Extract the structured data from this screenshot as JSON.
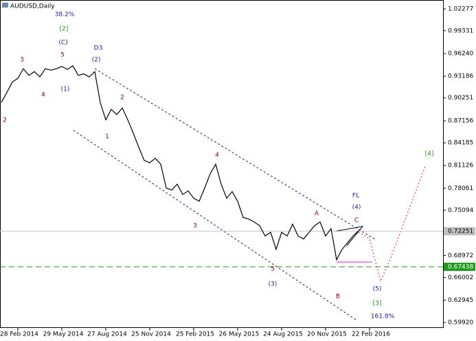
{
  "chart_data": {
    "type": "line",
    "title": "AUDUSD,Daily",
    "categories": [
      null,
      null,
      null,
      "28 Feb 2014",
      null,
      null,
      null,
      null,
      null,
      null,
      null,
      "29 May 2014",
      null,
      null,
      null,
      null,
      null,
      null,
      null,
      "27 Aug 2014",
      null,
      null,
      null,
      null,
      null,
      null,
      null,
      "25 Nov 2014",
      null,
      null,
      null,
      null,
      null,
      null,
      null,
      "25 Feb 2015",
      null,
      null,
      null,
      null,
      null,
      null,
      null,
      "26 May 2015",
      null,
      null,
      null,
      null,
      null,
      null,
      null,
      "24 Aug 2015",
      null,
      null,
      null,
      null,
      null,
      null,
      null,
      "20 Nov 2015",
      null,
      null,
      null,
      null,
      null,
      null,
      null,
      "22 Feb 2016",
      null,
      null,
      null,
      null,
      null,
      null,
      null,
      null,
      null,
      null,
      null,
      null
    ],
    "series": [
      {
        "color": "#000000",
        "values": [
          0.8963,
          0.91,
          0.924,
          0.929,
          0.942,
          0.933,
          0.938,
          0.931,
          0.942,
          0.94,
          0.942,
          0.945,
          0.941,
          0.946,
          0.933,
          0.935,
          0.931,
          0.938,
          0.896,
          0.873,
          0.887,
          0.88,
          0.889,
          0.873,
          0.855,
          0.836,
          0.818,
          0.815,
          0.821,
          0.813,
          0.781,
          0.778,
          0.786,
          0.772,
          0.777,
          0.767,
          0.763,
          0.781,
          0.8,
          0.813,
          0.786,
          0.767,
          0.776,
          0.763,
          0.741,
          0.739,
          0.735,
          0.73,
          0.716,
          0.721,
          0.698,
          0.721,
          0.716,
          0.732,
          0.716,
          0.712,
          0.721,
          0.73,
          0.735,
          0.716,
          0.726,
          0.684,
          0.698,
          0.707,
          0.716,
          0.723,
          null,
          null,
          null,
          null,
          null,
          null,
          null,
          null,
          null,
          null,
          null,
          null,
          null,
          null
        ]
      }
    ],
    "ylim": [
      0.5918,
      1.0348
    ],
    "yticks": [
      1.02277,
      0.99331,
      {
        "value": 0.9624,
        "label": "0.96240"
      },
      0.93186,
      0.90251,
      0.87156,
      0.84185,
      0.81126,
      0.78061,
      0.75094,
      0.68972,
      0.66002,
      0.62945,
      {
        "value": 0.5992,
        "label": "0.59920"
      }
    ],
    "current_price": 0.72251,
    "level": 0.67438,
    "level_color": "#1f9a1f",
    "annotations": [
      {
        "text": "38.2%",
        "color": "#1a1a8c"
      },
      {
        "text": "[2]",
        "color": "#2e8b22"
      },
      {
        "text": "(C)",
        "color": "#1a1a8c"
      },
      {
        "text": "5",
        "color": "#800000"
      },
      {
        "text": "3",
        "color": "#800000"
      },
      {
        "text": "4",
        "color": "#800000"
      },
      {
        "text": "(1)",
        "color": "#1a1a8c"
      },
      {
        "text": "D3",
        "color": "#1a1a8c"
      },
      {
        "text": "(2)",
        "color": "#1a1a8c"
      },
      {
        "text": "2",
        "color": "#800000"
      },
      {
        "text": "1",
        "color": "#800000"
      },
      {
        "text": "2",
        "color": "#800000"
      },
      {
        "text": "3",
        "color": "#800000"
      },
      {
        "text": "4",
        "color": "#800000"
      },
      {
        "text": "A",
        "color": "#800000"
      },
      {
        "text": "FL",
        "color": "#1a1a8c"
      },
      {
        "text": "(4)",
        "color": "#1a1a8c"
      },
      {
        "text": "C",
        "color": "#800000"
      },
      {
        "text": "B",
        "color": "#800000"
      },
      {
        "text": "5",
        "color": "#800000"
      },
      {
        "text": "(3)",
        "color": "#1a1a8c"
      },
      {
        "text": "(5)",
        "color": "#1a1a8c"
      },
      {
        "text": "[3]",
        "color": "#2e8b22"
      },
      {
        "text": "161.8%",
        "color": "#1a1a8c"
      },
      {
        "text": "[4]",
        "color": "#2e8b22"
      }
    ]
  }
}
